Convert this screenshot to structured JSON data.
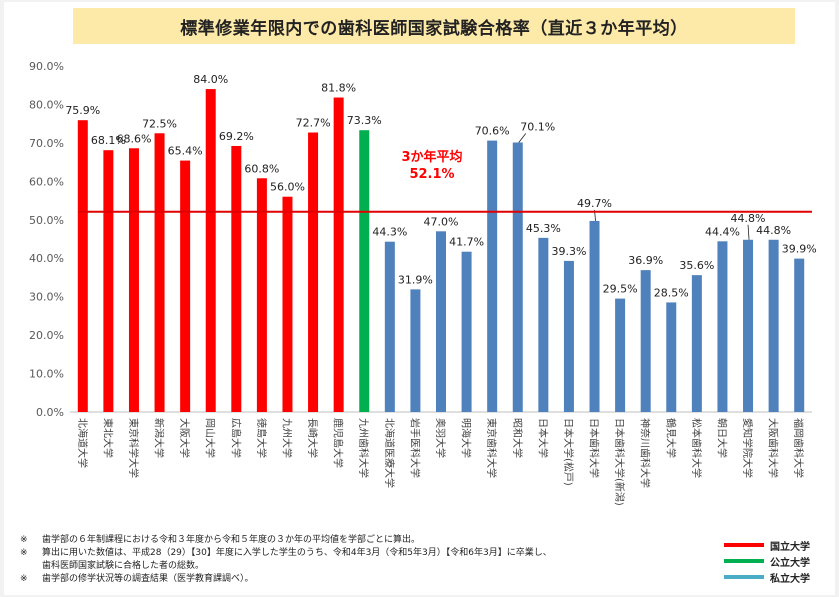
{
  "title": "標準修業年限内での歯科医師国家試験合格率（直近３か年平均）",
  "colors": {
    "national": "#ff0000",
    "public": "#00b050",
    "private": "#4f81bd",
    "private_legend": "#4bacc6",
    "average_line": "#e00000"
  },
  "average": {
    "label": "3か年平均",
    "value_label": "52.1%",
    "value": 52.1
  },
  "legend": [
    {
      "label": "国立大学",
      "color": "#ff0000"
    },
    {
      "label": "公立大学",
      "color": "#00b050"
    },
    {
      "label": "私立大学",
      "color": "#4bacc6"
    }
  ],
  "notes": [
    {
      "mark": "※",
      "text": "歯学部の６年制課程における令和３年度から令和５年度の３か年の平均値を学部ごとに算出。"
    },
    {
      "mark": "※",
      "text": "算出に用いた数値は、平成28（29）【30】年度に入学した学生のうち、令和4年3月（令和5年3月）【令和6年3月】に卒業し、\n歯科医師国家試験に合格した者の総数。"
    },
    {
      "mark": "※",
      "text": "歯学部の修学状況等の調査結果（医学教育課調べ）。"
    }
  ],
  "chart_data": {
    "type": "bar",
    "ylim": [
      0,
      90
    ],
    "yticks": [
      "0.0%",
      "10.0%",
      "20.0%",
      "30.0%",
      "40.0%",
      "50.0%",
      "60.0%",
      "70.0%",
      "80.0%",
      "90.0%"
    ],
    "categories": [
      "北海道大学",
      "東北大学",
      "東京科学大学",
      "新潟大学",
      "大阪大学",
      "岡山大学",
      "広島大学",
      "徳島大学",
      "九州大学",
      "長崎大学",
      "鹿児島大学",
      "九州歯科大学",
      "北海道医療大学",
      "岩手医科大学",
      "奥羽大学",
      "明海大学",
      "東京歯科大学",
      "昭和大学",
      "日本大学",
      "日本大学(松戸)",
      "日本歯科大学",
      "日本歯科大学(新潟)",
      "神奈川歯科大学",
      "鶴見大学",
      "松本歯科大学",
      "朝日大学",
      "愛知学院大学",
      "大阪歯科大学",
      "福岡歯科大学"
    ],
    "values": [
      75.9,
      68.1,
      68.6,
      72.5,
      65.4,
      84.0,
      69.2,
      60.8,
      56.0,
      72.7,
      81.8,
      73.3,
      44.3,
      31.9,
      47.0,
      41.7,
      70.6,
      70.1,
      45.3,
      39.3,
      49.7,
      29.5,
      36.9,
      28.5,
      35.6,
      44.4,
      44.8,
      44.8,
      39.9
    ],
    "labels": [
      "75.9%",
      "68.1%",
      "68.6%",
      "72.5%",
      "65.4%",
      "84.0%",
      "69.2%",
      "60.8%",
      "56.0%",
      "72.7%",
      "81.8%",
      "73.3%",
      "44.3%",
      "31.9%",
      "47.0%",
      "41.7%",
      "70.6%",
      "70.1%",
      "45.3%",
      "39.3%",
      "49.7%",
      "29.5%",
      "36.9%",
      "28.5%",
      "35.6%",
      "44.4%",
      "44.8%",
      "44.8%",
      "39.9%"
    ],
    "kinds": [
      "national",
      "national",
      "national",
      "national",
      "national",
      "national",
      "national",
      "national",
      "national",
      "national",
      "national",
      "public",
      "private",
      "private",
      "private",
      "private",
      "private",
      "private",
      "private",
      "private",
      "private",
      "private",
      "private",
      "private",
      "private",
      "private",
      "private",
      "private",
      "private"
    ],
    "grid": false
  }
}
